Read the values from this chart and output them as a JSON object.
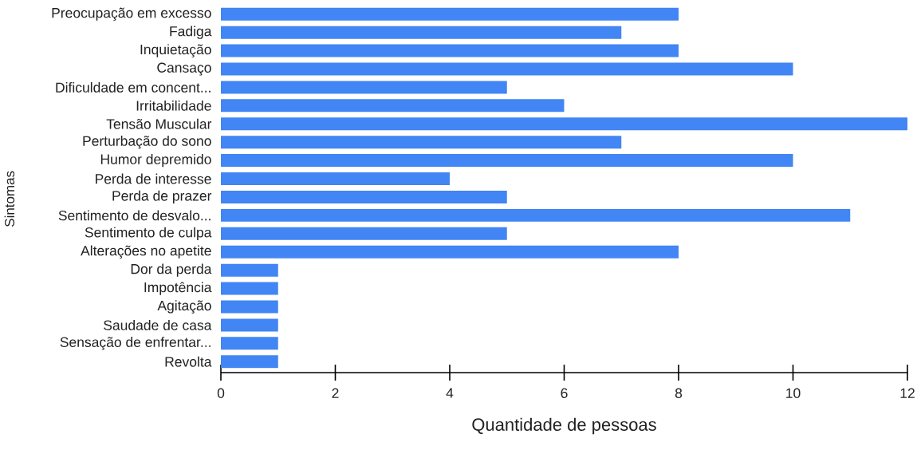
{
  "chart_data": {
    "type": "bar",
    "orientation": "horizontal",
    "xlabel": "Quantidade de pessoas",
    "ylabel": "Sintomas",
    "categories": [
      "Preocupação em excesso",
      "Fadiga",
      "Inquietação",
      "Cansaço",
      "Dificuldade em concent...",
      "Irritabilidade",
      "Tensão Muscular",
      "Perturbação do sono",
      "Humor depremido",
      "Perda de interesse",
      "Perda de prazer",
      "Sentimento de desvalo...",
      "Sentimento de culpa",
      "Alterações no apetite",
      "Dor da perda",
      "Impotência",
      "Agitação",
      "Saudade de casa",
      "Sensação de enfrentar...",
      "Revolta"
    ],
    "values": [
      8,
      7,
      8,
      10,
      5,
      6,
      12,
      7,
      10,
      4,
      5,
      11,
      5,
      8,
      1,
      1,
      1,
      1,
      1,
      1
    ],
    "color": "#4285f4",
    "xlim": [
      0,
      12
    ],
    "xticks": [
      0,
      2,
      4,
      6,
      8,
      10,
      12
    ],
    "grid": false
  }
}
